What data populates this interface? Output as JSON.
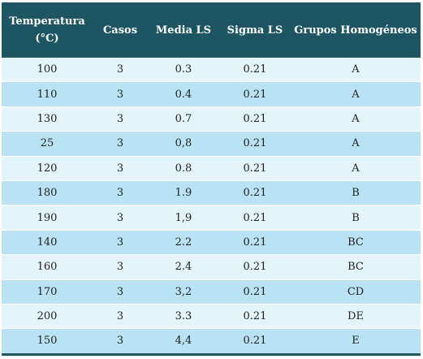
{
  "headers": {
    "temperatura": "Temperatura (°C)",
    "casos": "Casos",
    "media": "Media LS",
    "sigma": "Sigma LS",
    "grupos": "Grupos Homogéneos"
  },
  "rows": [
    {
      "temperatura": "100",
      "casos": "3",
      "media": "0.3",
      "sigma": "0.21",
      "grupo": "A"
    },
    {
      "temperatura": "110",
      "casos": "3",
      "media": "0.4",
      "sigma": "0.21",
      "grupo": "A"
    },
    {
      "temperatura": "130",
      "casos": "3",
      "media": "0.7",
      "sigma": "0.21",
      "grupo": "A"
    },
    {
      "temperatura": "25",
      "casos": "3",
      "media": "0,8",
      "sigma": "0.21",
      "grupo": "A"
    },
    {
      "temperatura": "120",
      "casos": "3",
      "media": "0.8",
      "sigma": "0.21",
      "grupo": "A"
    },
    {
      "temperatura": "180",
      "casos": "3",
      "media": "1.9",
      "sigma": "0.21",
      "grupo": "B"
    },
    {
      "temperatura": "190",
      "casos": "3",
      "media": "1,9",
      "sigma": "0.21",
      "grupo": "B"
    },
    {
      "temperatura": "140",
      "casos": "3",
      "media": "2.2",
      "sigma": "0.21",
      "grupo": "BC"
    },
    {
      "temperatura": "160",
      "casos": "3",
      "media": "2.4",
      "sigma": "0.21",
      "grupo": "BC"
    },
    {
      "temperatura": "170",
      "casos": "3",
      "media": "3,2",
      "sigma": "0.21",
      "grupo": "CD"
    },
    {
      "temperatura": "200",
      "casos": "3",
      "media": "3.3",
      "sigma": "0.21",
      "grupo": "DE"
    },
    {
      "temperatura": "150",
      "casos": "3",
      "media": "4,4",
      "sigma": "0.21",
      "grupo": "E"
    }
  ],
  "colors": {
    "header_bg": "#1d5563",
    "header_text": "#ffffff",
    "row_light": "#e3f4fb",
    "row_dark": "#b9e3f5"
  }
}
